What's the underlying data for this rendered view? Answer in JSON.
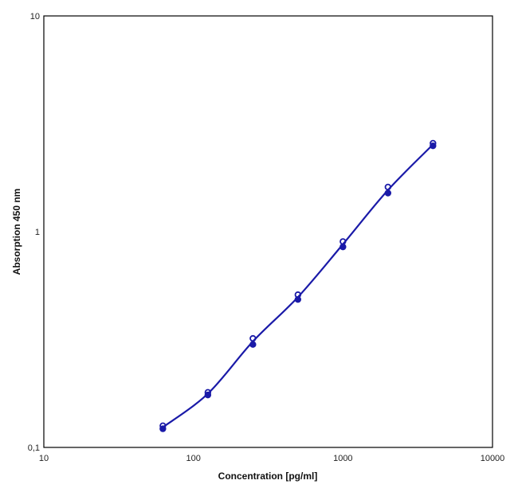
{
  "chart_data": {
    "type": "scatter",
    "xlabel": "Concentration [pg/ml]",
    "ylabel": "Absorption 450 nm",
    "xscale": "log",
    "yscale": "log",
    "xlim": [
      10,
      10000
    ],
    "ylim": [
      0.1,
      10
    ],
    "xticks": [
      "10",
      "100",
      "1000",
      "10000"
    ],
    "yticks": [
      "0,1",
      "1",
      "10"
    ],
    "grid": false,
    "legend": "none",
    "color": "#1a1aa8",
    "fit_curve": true,
    "x": [
      62.5,
      125,
      250,
      500,
      1000,
      2000,
      4000
    ],
    "series": [
      {
        "values": [
          0.126,
          0.18,
          0.32,
          0.51,
          0.9,
          1.61,
          2.57
        ]
      },
      {
        "values": [
          0.122,
          0.175,
          0.3,
          0.485,
          0.85,
          1.51,
          2.5
        ]
      }
    ]
  }
}
